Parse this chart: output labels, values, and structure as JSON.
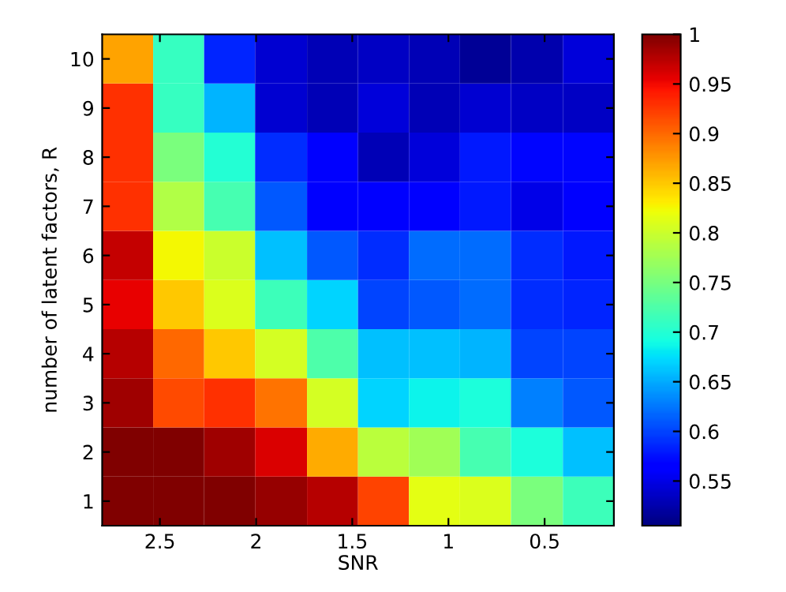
{
  "chart_data": {
    "type": "heatmap",
    "xlabel": "SNR",
    "ylabel": "number of latent factors, R",
    "x": [
      2.67,
      2.4,
      2.14,
      1.87,
      1.6,
      1.34,
      1.07,
      0.81,
      0.54,
      0.27
    ],
    "xlim": [
      2.8,
      0.14
    ],
    "xticks": [
      2.5,
      2,
      1.5,
      1,
      0.5
    ],
    "y_categories": [
      "10",
      "9",
      "8",
      "7",
      "6",
      "5",
      "4",
      "3",
      "2",
      "1"
    ],
    "cells": [
      [
        0.87,
        0.71,
        0.585,
        0.54,
        0.53,
        0.535,
        0.53,
        0.515,
        0.525,
        0.545
      ],
      [
        0.93,
        0.71,
        0.655,
        0.54,
        0.53,
        0.545,
        0.53,
        0.54,
        0.535,
        0.535
      ],
      [
        0.93,
        0.752,
        0.7,
        0.59,
        0.567,
        0.53,
        0.545,
        0.58,
        0.57,
        0.57
      ],
      [
        0.93,
        0.785,
        0.72,
        0.61,
        0.56,
        0.56,
        0.567,
        0.58,
        0.55,
        0.567
      ],
      [
        0.97,
        0.825,
        0.8,
        0.66,
        0.61,
        0.59,
        0.62,
        0.62,
        0.59,
        0.58
      ],
      [
        0.955,
        0.85,
        0.81,
        0.715,
        0.67,
        0.6,
        0.61,
        0.62,
        0.59,
        0.585
      ],
      [
        0.975,
        0.9,
        0.85,
        0.805,
        0.725,
        0.66,
        0.66,
        0.655,
        0.6,
        0.6
      ],
      [
        0.985,
        0.915,
        0.93,
        0.895,
        0.805,
        0.67,
        0.685,
        0.695,
        0.63,
        0.61
      ],
      [
        1.0,
        1.0,
        0.985,
        0.96,
        0.865,
        0.79,
        0.775,
        0.72,
        0.695,
        0.66
      ],
      [
        1.0,
        1.0,
        1.0,
        0.99,
        0.975,
        0.92,
        0.815,
        0.81,
        0.752,
        0.715
      ]
    ],
    "clim": [
      0.505,
      1
    ],
    "cticks": [
      0.55,
      0.6,
      0.65,
      0.7,
      0.75,
      0.8,
      0.85,
      0.9,
      0.95,
      1
    ]
  }
}
